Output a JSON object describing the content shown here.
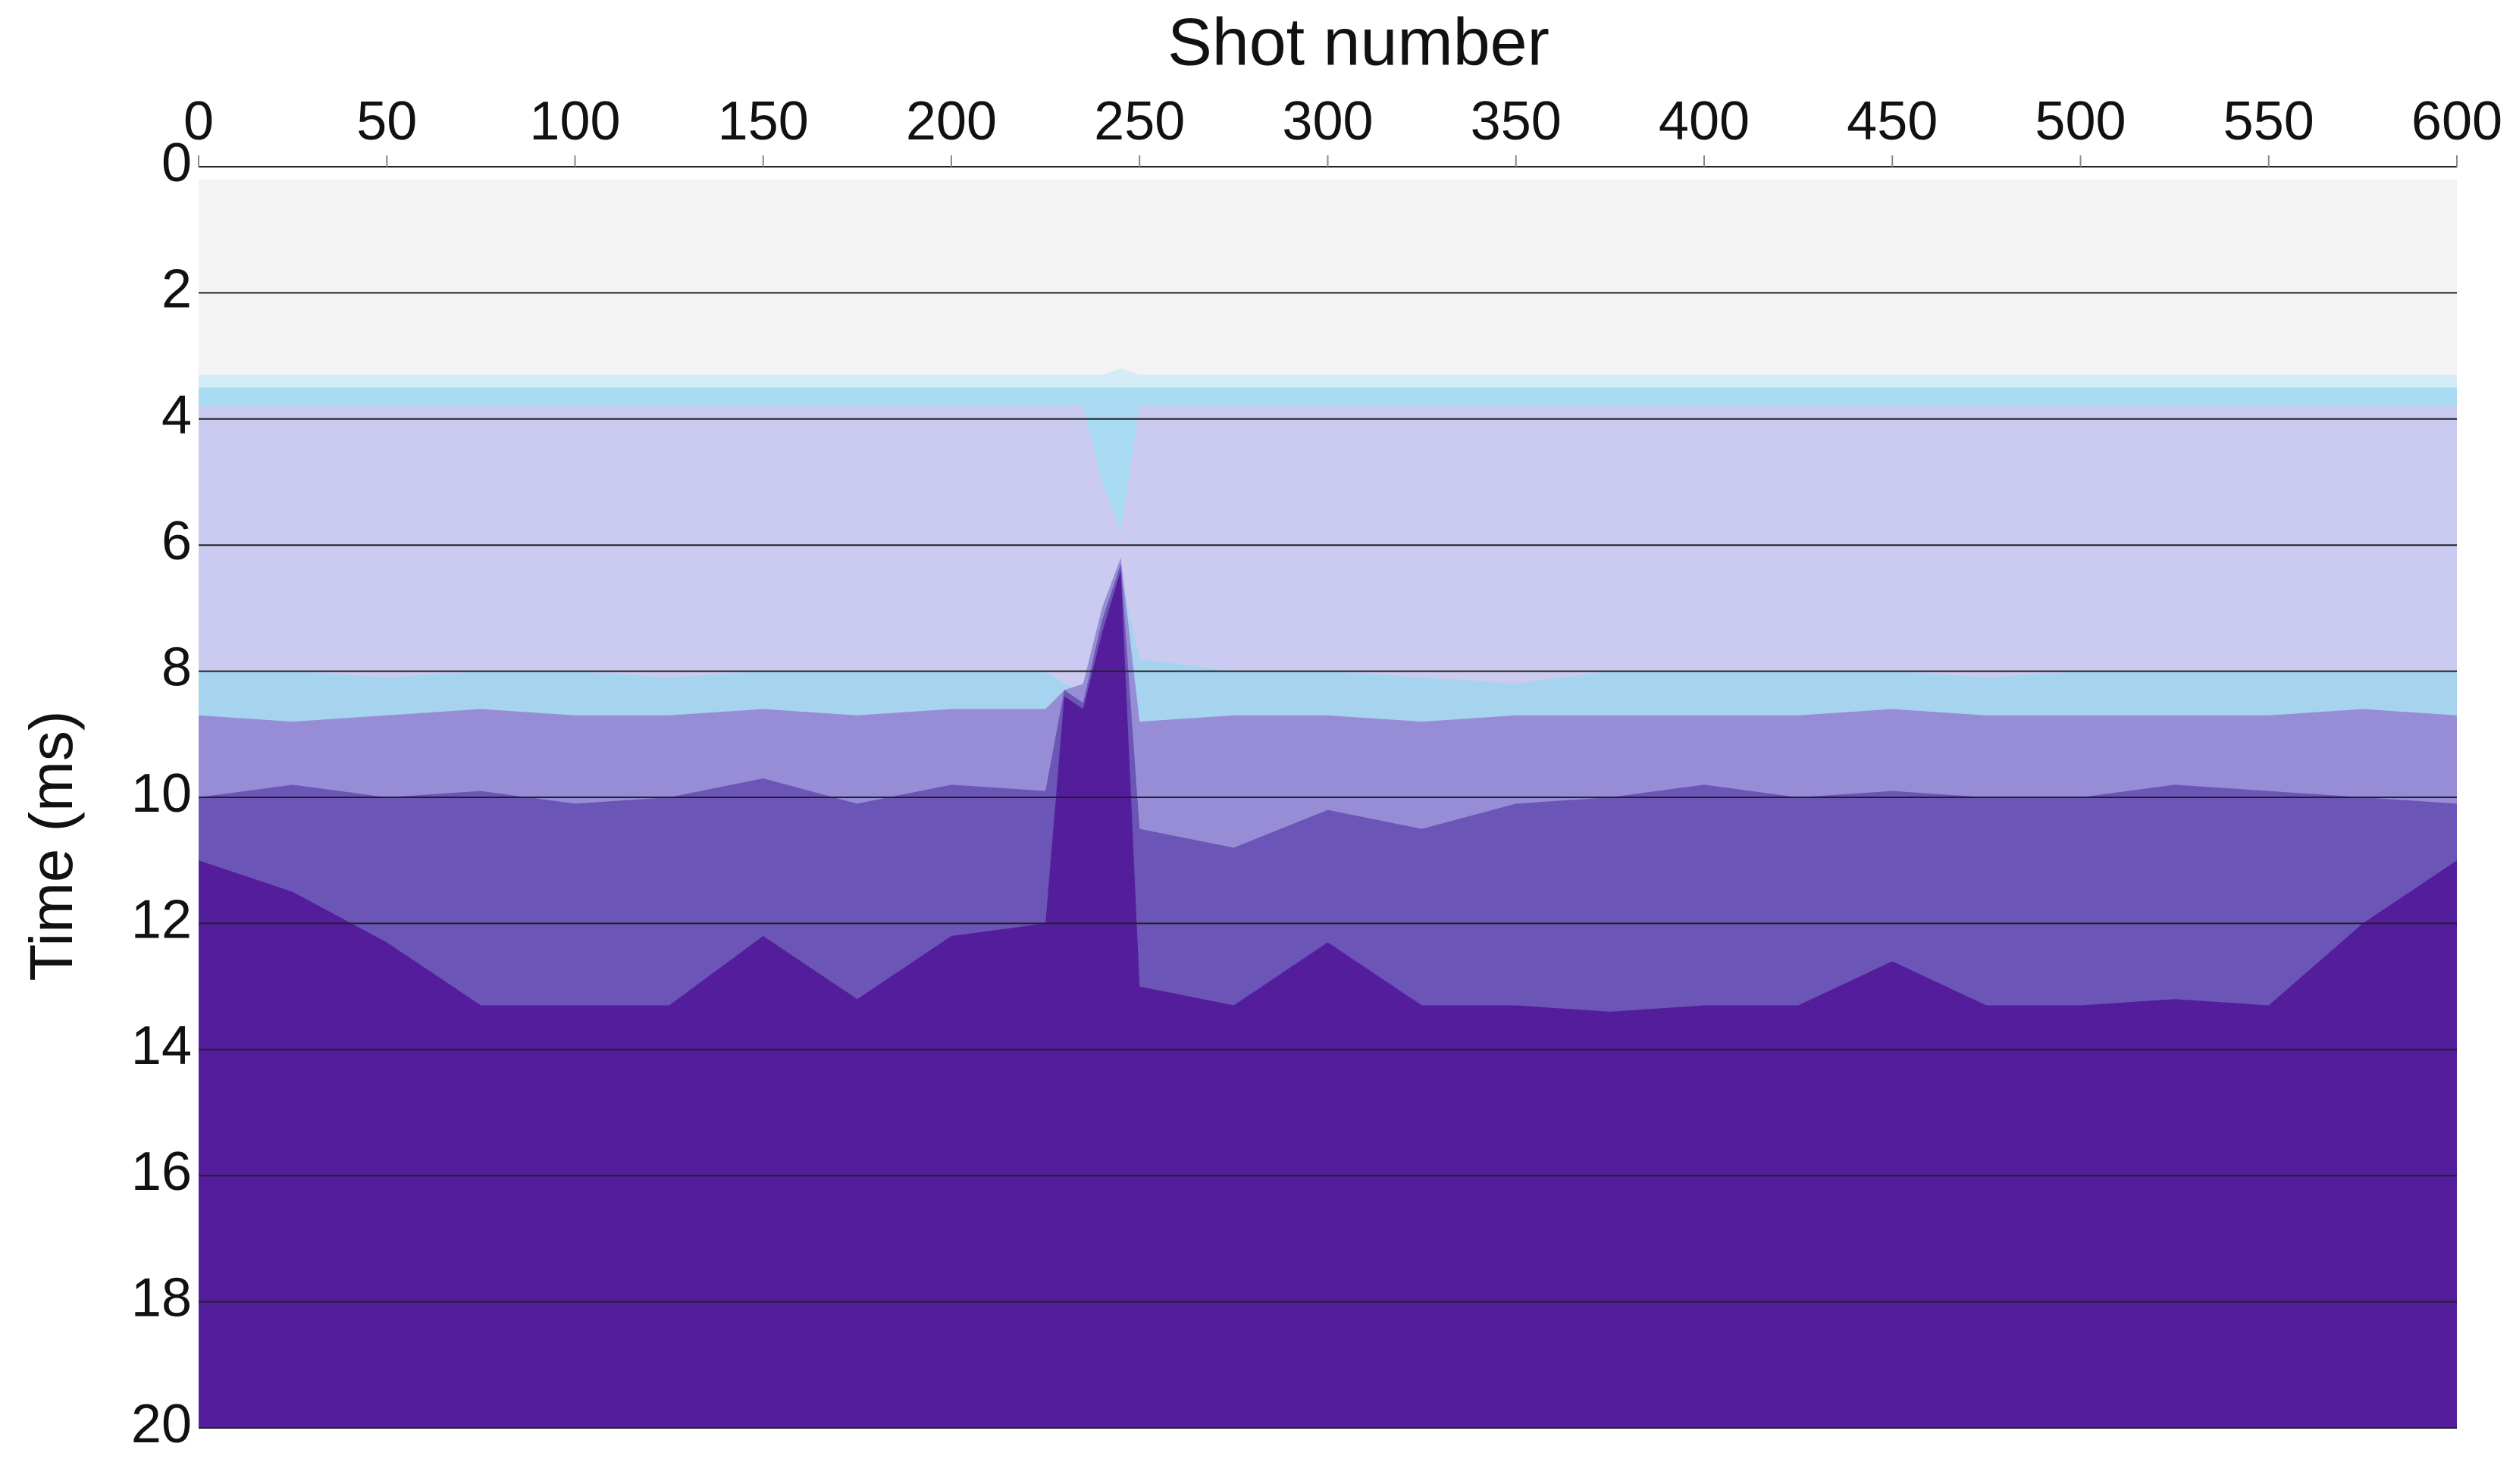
{
  "chart_data": {
    "type": "layers",
    "x_label": "Shot number",
    "y_label": "Time  (ms)",
    "x_axis_position": "top",
    "y_reversed": true,
    "grid": true,
    "grid_color": "#222222",
    "xlim": [
      0,
      600
    ],
    "xticks": [
      0,
      50,
      100,
      150,
      200,
      250,
      300,
      350,
      400,
      450,
      500,
      550,
      600
    ],
    "ylim": [
      0,
      20
    ],
    "yticks": [
      0,
      2,
      4,
      6,
      8,
      10,
      12,
      14,
      16,
      18,
      20
    ],
    "x": [
      0,
      25,
      50,
      75,
      100,
      125,
      150,
      175,
      200,
      225,
      230,
      235,
      240,
      245,
      250,
      275,
      300,
      325,
      350,
      375,
      400,
      425,
      450,
      475,
      500,
      525,
      550,
      575,
      600
    ],
    "series": [
      {
        "color": "#f3f3f3",
        "values": [
          0.2,
          0.2,
          0.2,
          0.2,
          0.2,
          0.2,
          0.2,
          0.2,
          0.2,
          0.2,
          0.2,
          0.2,
          0.2,
          0.2,
          0.2,
          0.2,
          0.2,
          0.2,
          0.2,
          0.2,
          0.2,
          0.2,
          0.2,
          0.2,
          0.2,
          0.2,
          0.2,
          0.2,
          0.2
        ]
      },
      {
        "color": "#d4ecf8",
        "values": [
          3.3,
          3.3,
          3.3,
          3.3,
          3.3,
          3.3,
          3.3,
          3.3,
          3.3,
          3.3,
          3.3,
          3.3,
          3.3,
          3.2,
          3.3,
          3.3,
          3.3,
          3.3,
          3.3,
          3.3,
          3.3,
          3.3,
          3.3,
          3.3,
          3.3,
          3.3,
          3.3,
          3.3,
          3.3
        ]
      },
      {
        "color": "#a9dbf2",
        "values": [
          3.5,
          3.5,
          3.5,
          3.5,
          3.5,
          3.5,
          3.5,
          3.5,
          3.5,
          3.5,
          3.5,
          3.5,
          3.5,
          3.5,
          3.5,
          3.5,
          3.5,
          3.5,
          3.5,
          3.5,
          3.5,
          3.5,
          3.5,
          3.5,
          3.5,
          3.5,
          3.5,
          3.5,
          3.5
        ]
      },
      {
        "color": "#cbcaf0",
        "values": [
          3.8,
          3.8,
          3.8,
          3.8,
          3.8,
          3.8,
          3.8,
          3.8,
          3.8,
          3.8,
          3.8,
          3.8,
          5.0,
          5.8,
          3.8,
          3.8,
          3.8,
          3.8,
          3.8,
          3.8,
          3.8,
          3.8,
          3.8,
          3.8,
          3.8,
          3.8,
          3.8,
          3.8,
          3.8
        ]
      },
      {
        "color": "#a6d4ee",
        "values": [
          8.0,
          8.0,
          8.1,
          8.0,
          8.0,
          8.1,
          8.0,
          8.0,
          8.0,
          8.0,
          8.2,
          8.3,
          7.5,
          6.5,
          7.8,
          8.0,
          8.0,
          8.1,
          8.2,
          8.0,
          8.0,
          8.0,
          8.0,
          8.1,
          8.0,
          8.0,
          8.0,
          8.0,
          8.0
        ]
      },
      {
        "color": "#978dd6",
        "values": [
          8.7,
          8.8,
          8.7,
          8.6,
          8.7,
          8.7,
          8.6,
          8.7,
          8.6,
          8.6,
          8.3,
          8.2,
          7.0,
          6.2,
          8.8,
          8.7,
          8.7,
          8.8,
          8.7,
          8.7,
          8.7,
          8.7,
          8.6,
          8.7,
          8.7,
          8.7,
          8.7,
          8.6,
          8.7
        ]
      },
      {
        "color": "#6b55b6",
        "values": [
          10.0,
          9.8,
          10.0,
          9.9,
          10.1,
          10.0,
          9.7,
          10.1,
          9.8,
          9.9,
          8.3,
          8.5,
          7.2,
          6.3,
          10.5,
          10.8,
          10.2,
          10.5,
          10.1,
          10.0,
          9.8,
          10.0,
          9.9,
          10.0,
          10.0,
          9.8,
          9.9,
          10.0,
          10.1
        ]
      },
      {
        "color": "#531d9b",
        "values": [
          11.0,
          11.5,
          12.3,
          13.3,
          13.3,
          13.3,
          12.2,
          13.2,
          12.2,
          12.0,
          8.4,
          8.6,
          7.4,
          6.4,
          13.0,
          13.3,
          12.3,
          13.3,
          13.3,
          13.4,
          13.3,
          13.3,
          12.6,
          13.3,
          13.3,
          13.2,
          13.3,
          12.0,
          11.0
        ]
      }
    ]
  }
}
